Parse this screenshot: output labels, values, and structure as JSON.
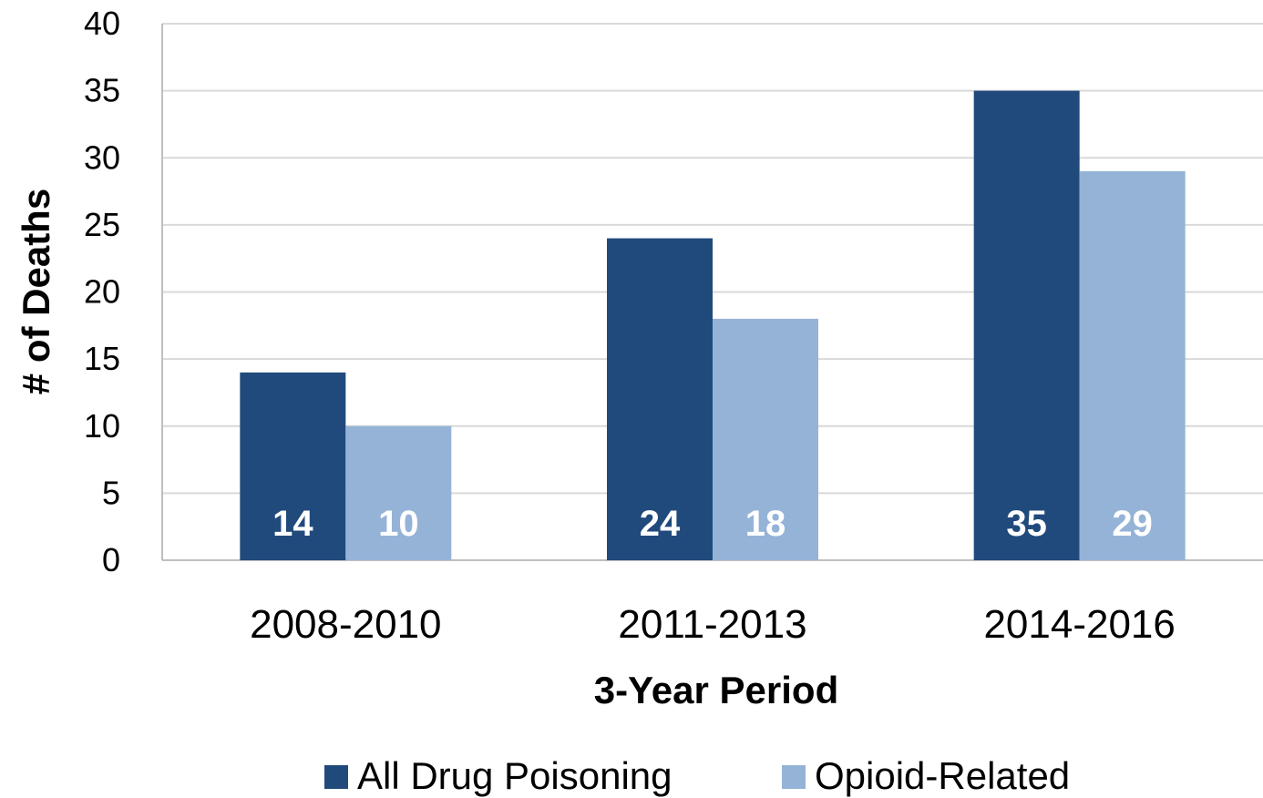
{
  "chart_data": {
    "type": "bar",
    "categories": [
      "2008-2010",
      "2011-2013",
      "2014-2016"
    ],
    "series": [
      {
        "name": "All Drug Poisoning",
        "values": [
          14,
          24,
          35
        ],
        "color": "#204a7c"
      },
      {
        "name": "Opioid-Related",
        "values": [
          10,
          18,
          29
        ],
        "color": "#95b3d7"
      }
    ],
    "title": "",
    "xlabel": "3-Year Period",
    "ylabel": "# of Deaths",
    "ylim": [
      0,
      40
    ],
    "yticks": [
      "0",
      "5",
      "10",
      "15",
      "20",
      "25",
      "30",
      "35",
      "40"
    ],
    "grid": true,
    "legend_position": "bottom",
    "data_labels": [
      "14",
      "10",
      "24",
      "18",
      "35",
      "29"
    ]
  }
}
